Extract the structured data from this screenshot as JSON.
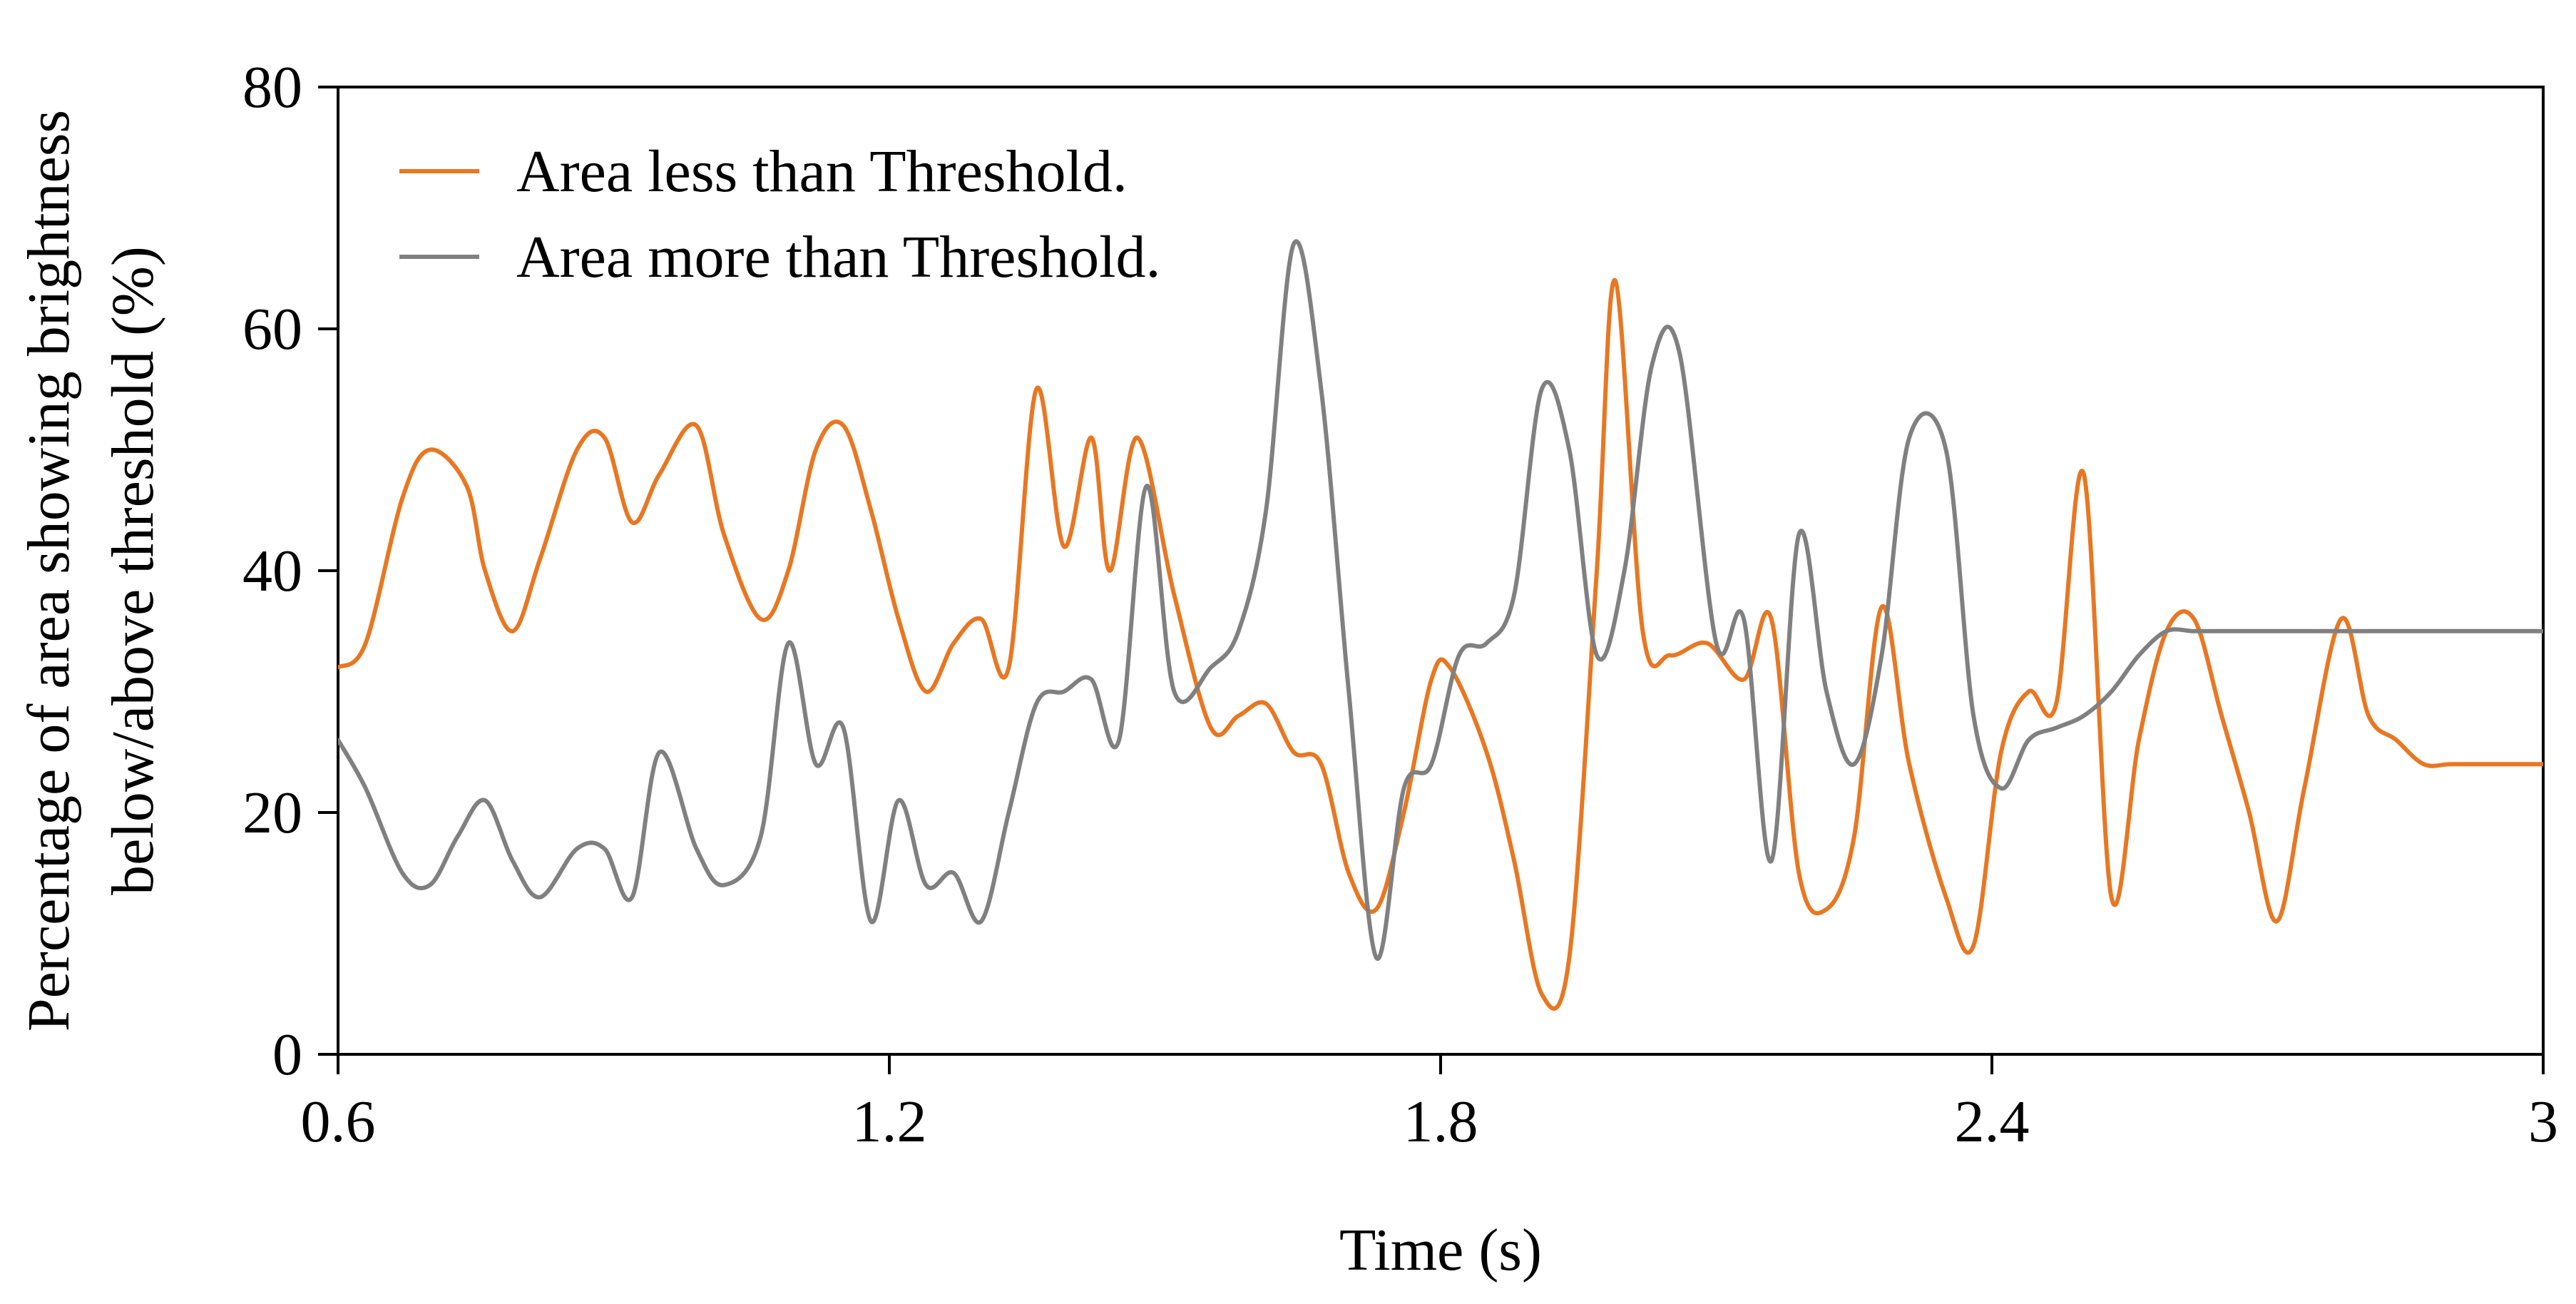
{
  "chart_data": {
    "type": "line",
    "title": "",
    "xlabel": "Time (s)",
    "ylabel_line1": "Percentage of area showing brightness",
    "ylabel_line2": "below/above threshold (%)",
    "xlim": [
      0.6,
      3.0
    ],
    "ylim": [
      0,
      80
    ],
    "xticks": [
      0.6,
      1.2,
      1.8,
      2.4,
      3.0
    ],
    "xtick_labels": [
      "0.6",
      "1.2",
      "1.8",
      "2.4",
      "3"
    ],
    "yticks": [
      0,
      20,
      40,
      60,
      80
    ],
    "ytick_labels": [
      "0",
      "20",
      "40",
      "60",
      "80"
    ],
    "grid": false,
    "legend_position": "top-left",
    "series": [
      {
        "name": "Area less than Threshold.",
        "color": "#E87722",
        "x": [
          0.6,
          0.63,
          0.67,
          0.7,
          0.74,
          0.76,
          0.79,
          0.82,
          0.86,
          0.89,
          0.92,
          0.95,
          0.99,
          1.02,
          1.06,
          1.09,
          1.12,
          1.15,
          1.18,
          1.21,
          1.24,
          1.27,
          1.3,
          1.33,
          1.36,
          1.39,
          1.42,
          1.44,
          1.47,
          1.51,
          1.55,
          1.58,
          1.61,
          1.64,
          1.67,
          1.7,
          1.73,
          1.76,
          1.79,
          1.81,
          1.85,
          1.88,
          1.91,
          1.94,
          1.97,
          1.99,
          2.02,
          2.05,
          2.09,
          2.13,
          2.16,
          2.19,
          2.22,
          2.25,
          2.28,
          2.31,
          2.35,
          2.38,
          2.41,
          2.44,
          2.47,
          2.5,
          2.53,
          2.56,
          2.59,
          2.62,
          2.65,
          2.68,
          2.71,
          2.74,
          2.78,
          2.81,
          2.84,
          2.87,
          2.9,
          2.94,
          2.97,
          3.0
        ],
        "values": [
          32,
          34,
          46,
          50,
          47,
          40,
          35,
          41,
          50,
          51,
          44,
          48,
          52,
          43,
          36,
          40,
          50,
          52,
          45,
          36,
          30,
          34,
          36,
          32,
          55,
          42,
          51,
          40,
          51,
          38,
          27,
          28,
          29,
          25,
          24,
          15,
          12,
          20,
          31,
          32,
          25,
          16,
          5,
          8,
          40,
          64,
          35,
          33,
          34,
          31,
          36,
          15,
          12,
          18,
          37,
          24,
          13,
          9,
          25,
          30,
          29,
          48,
          13,
          26,
          35,
          36,
          28,
          20,
          11,
          22,
          36,
          28,
          26,
          24,
          24,
          24,
          24,
          24
        ]
      },
      {
        "name": "Area more than Threshold.",
        "color": "#808080",
        "x": [
          0.6,
          0.63,
          0.67,
          0.7,
          0.73,
          0.76,
          0.79,
          0.82,
          0.86,
          0.89,
          0.92,
          0.95,
          0.99,
          1.02,
          1.06,
          1.09,
          1.12,
          1.15,
          1.18,
          1.21,
          1.24,
          1.27,
          1.3,
          1.33,
          1.36,
          1.39,
          1.42,
          1.45,
          1.48,
          1.51,
          1.55,
          1.58,
          1.61,
          1.64,
          1.67,
          1.7,
          1.73,
          1.76,
          1.79,
          1.82,
          1.85,
          1.88,
          1.91,
          1.94,
          1.97,
          2.0,
          2.03,
          2.06,
          2.1,
          2.13,
          2.16,
          2.19,
          2.22,
          2.25,
          2.28,
          2.31,
          2.35,
          2.38,
          2.41,
          2.44,
          2.47,
          2.5,
          2.53,
          2.56,
          2.59,
          2.62,
          2.65,
          2.68,
          2.71,
          2.74,
          2.78,
          2.81,
          2.84,
          2.87,
          2.9,
          2.94,
          2.97,
          3.0
        ],
        "values": [
          26,
          22,
          15,
          14,
          18,
          21,
          16,
          13,
          17,
          17,
          13,
          25,
          17,
          14,
          18,
          34,
          24,
          27,
          11,
          21,
          14,
          15,
          11,
          20,
          29,
          30,
          31,
          26,
          47,
          30,
          32,
          35,
          45,
          67,
          55,
          30,
          8,
          22,
          24,
          33,
          34,
          38,
          55,
          50,
          33,
          40,
          57,
          58,
          34,
          36,
          16,
          43,
          30,
          24,
          33,
          51,
          50,
          28,
          22,
          26,
          27,
          28,
          30,
          33,
          35,
          35,
          35,
          35,
          35,
          35,
          35,
          35,
          35,
          35,
          35,
          35,
          35,
          35
        ]
      }
    ]
  }
}
